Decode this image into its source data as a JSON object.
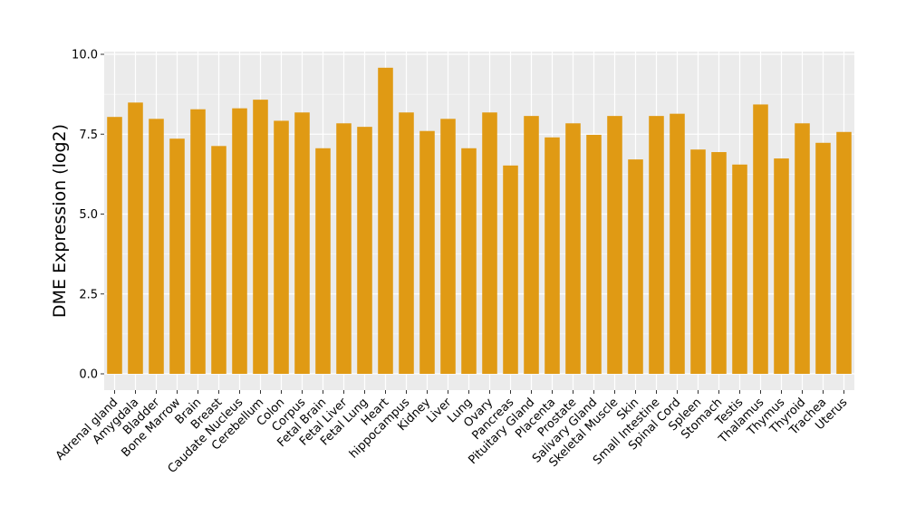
{
  "chart_data": {
    "type": "bar",
    "title": "",
    "xlabel": "",
    "ylabel": "DME Expression (log2)",
    "ylim": [
      -0.4,
      10.0
    ],
    "yticks": [
      0.0,
      2.5,
      5.0,
      7.5,
      10.0
    ],
    "ytick_labels": [
      "0.0",
      "2.5",
      "5.0",
      "7.5",
      "10.0"
    ],
    "grid": true,
    "legend": "none",
    "bar_color": "#E09A14",
    "panel_bg": "#EBEBEB",
    "grid_color": "#FFFFFF",
    "categories": [
      "Adrenal gland",
      "Amygdala",
      "Bladder",
      "Bone Marrow",
      "Brain",
      "Breast",
      "Caudate Nucleus",
      "Cerebellum",
      "Colon",
      "Corpus",
      "Fetal Brain",
      "Fetal Liver",
      "Fetal Lung",
      "Heart",
      "hippocampus",
      "Kidney",
      "Liver",
      "Lung",
      "Ovary",
      "Pancreas",
      "Pituitary Gland",
      "Placenta",
      "Prostate",
      "Salivary Gland",
      "Skeletal Muscle",
      "Skin",
      "Small Intestine",
      "Spinal Cord",
      "Spleen",
      "Stomach",
      "Testis",
      "Thalamus",
      "Thymus",
      "Thyroid",
      "Trachea",
      "Uterus"
    ],
    "values": [
      8.04,
      8.49,
      7.98,
      7.36,
      8.28,
      7.13,
      8.31,
      8.58,
      7.92,
      8.18,
      7.06,
      7.84,
      7.73,
      9.58,
      8.18,
      7.6,
      7.98,
      7.06,
      8.18,
      6.52,
      8.07,
      7.4,
      7.84,
      7.48,
      8.07,
      6.71,
      8.07,
      8.14,
      7.02,
      6.94,
      6.55,
      8.43,
      6.74,
      7.84,
      7.23,
      7.57
    ]
  }
}
